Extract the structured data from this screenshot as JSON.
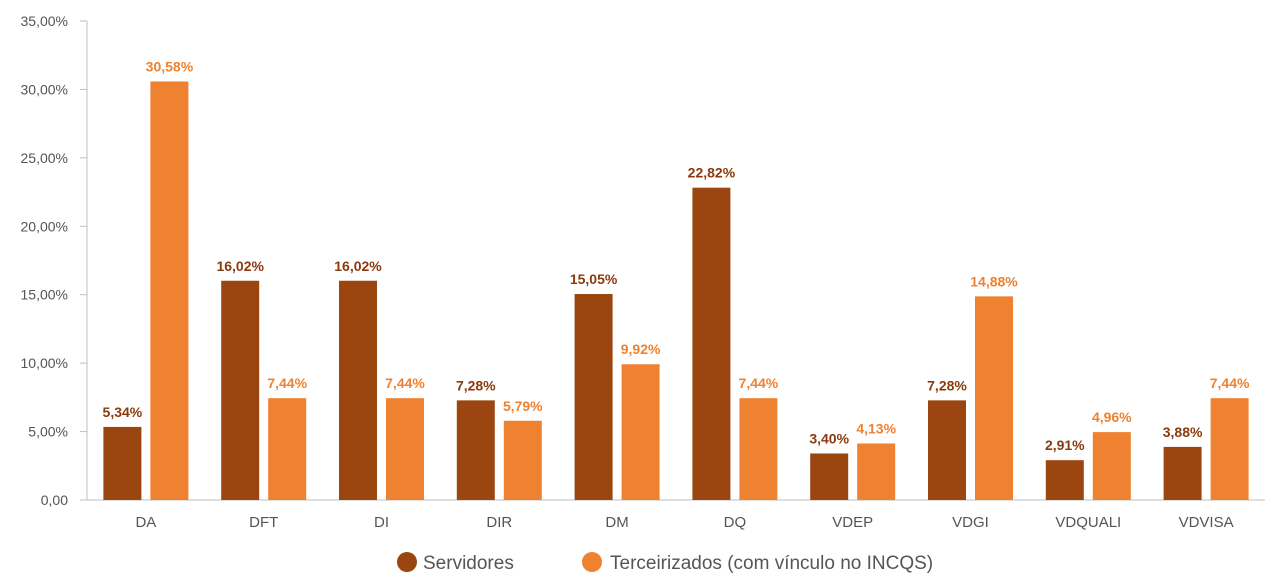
{
  "chart_data": {
    "type": "bar",
    "categories": [
      "DA",
      "DFT",
      "DI",
      "DIR",
      "DM",
      "DQ",
      "VDEP",
      "VDGI",
      "VDQUALI",
      "VDVISA"
    ],
    "series": [
      {
        "name": "Servidores",
        "color": "#9B4511",
        "values": [
          5.34,
          16.02,
          16.02,
          7.28,
          15.05,
          22.82,
          3.4,
          7.28,
          2.91,
          3.88
        ],
        "labels": [
          "5,34%",
          "16,02%",
          "16,02%",
          "7,28%",
          "15,05%",
          "22,82%",
          "3,40%",
          "7,28%",
          "2,91%",
          "3,88%"
        ]
      },
      {
        "name": "Terceirizados (com vínculo no INCQS)",
        "color": "#EE8230",
        "values": [
          30.58,
          7.44,
          7.44,
          5.79,
          9.92,
          7.44,
          4.13,
          14.88,
          4.96,
          7.44
        ],
        "labels": [
          "30,58%",
          "7,44%",
          "7,44%",
          "5,79%",
          "9,92%",
          "7,44%",
          "4,13%",
          "14,88%",
          "4,96%",
          "7,44%"
        ]
      }
    ],
    "ylim": [
      0,
      35
    ],
    "yticks": [
      0,
      5,
      10,
      15,
      20,
      25,
      30,
      35
    ],
    "ytick_labels": [
      "0,00",
      "5,00%",
      "10,00%",
      "15,00%",
      "20,00%",
      "25,00%",
      "30,00%",
      "35,00%"
    ],
    "grid": false,
    "legend_position": "bottom-center"
  }
}
